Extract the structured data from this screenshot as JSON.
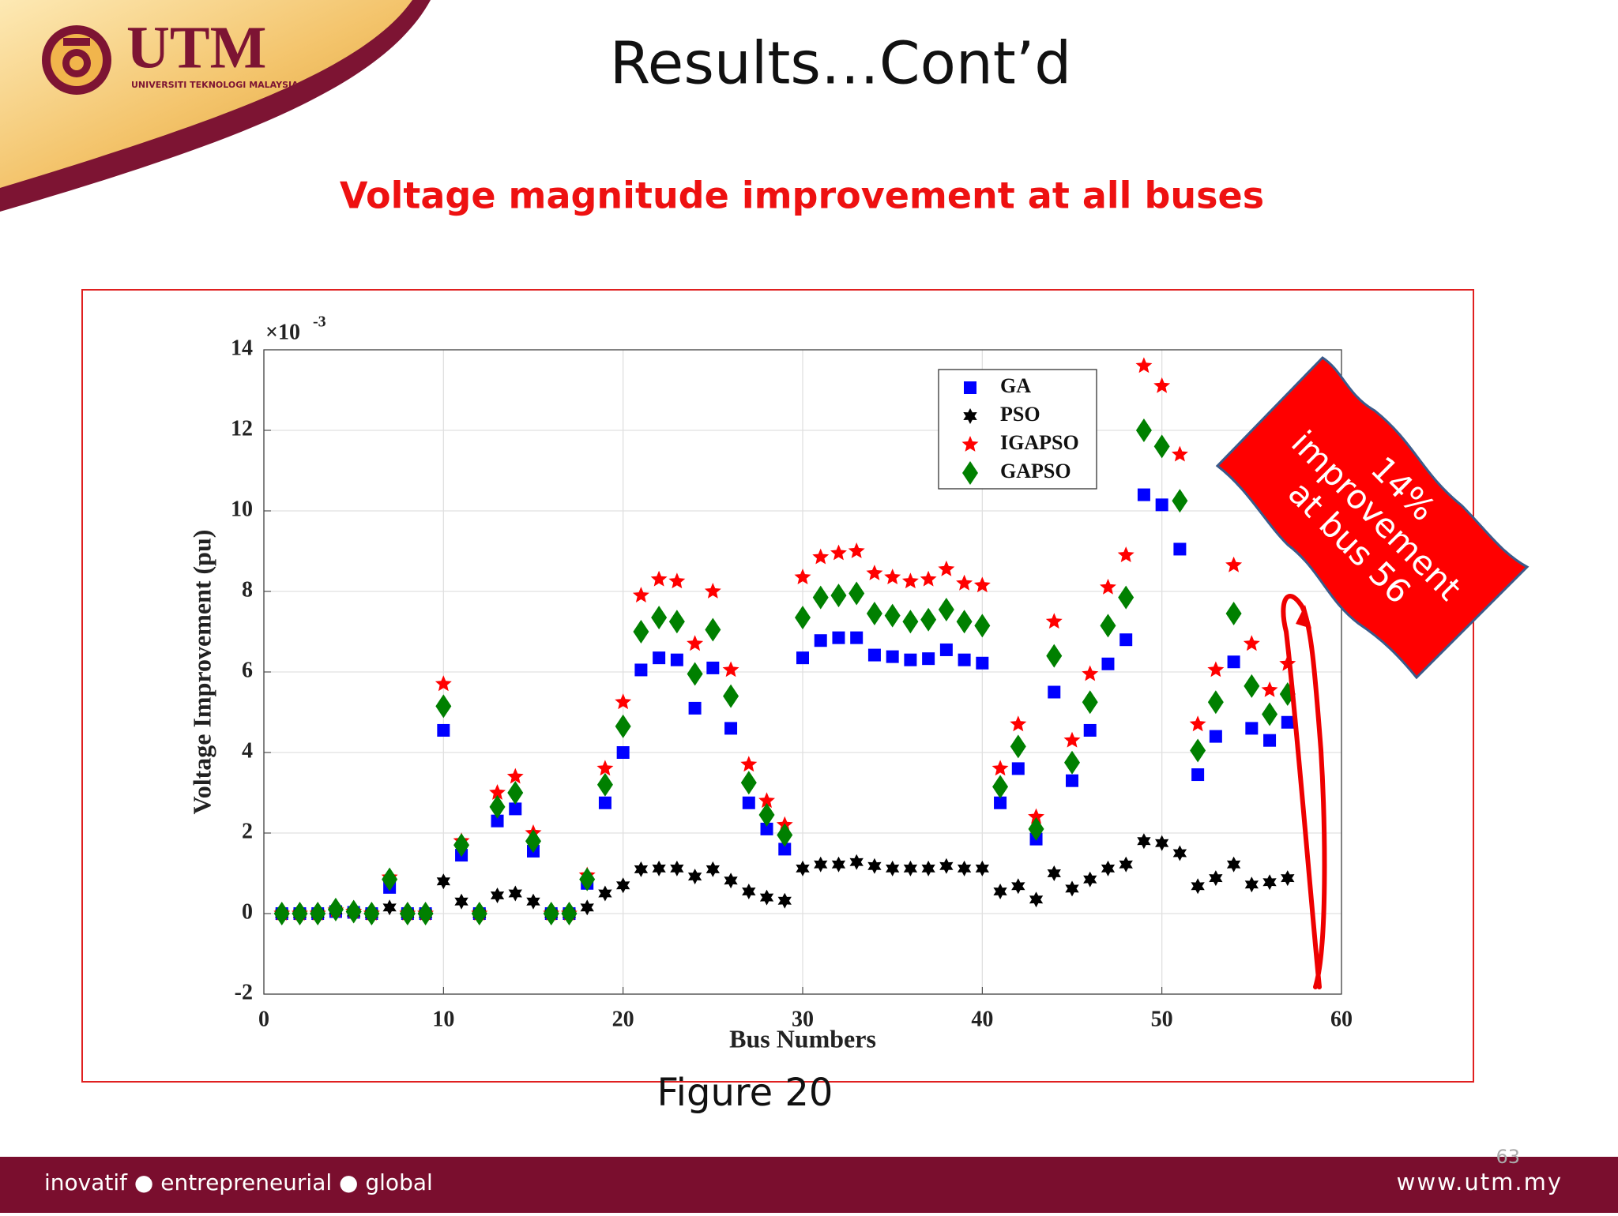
{
  "header": {
    "logo_title": "UTM",
    "logo_subtitle": "UNIVERSITI TEKNOLOGI MALAYSIA",
    "title": "Results…Cont’d"
  },
  "chart_data": {
    "type": "scatter",
    "title": "Voltage magnitude improvement at all buses",
    "x_label": "Bus Numbers",
    "y_label": "Voltage Improvement (pu)",
    "y_multiplier": {
      "base": "×10",
      "exponent": "-3"
    },
    "x": [
      1,
      2,
      3,
      4,
      5,
      6,
      7,
      8,
      9,
      10,
      11,
      12,
      13,
      14,
      15,
      16,
      17,
      18,
      19,
      20,
      21,
      22,
      23,
      24,
      25,
      26,
      27,
      28,
      29,
      30,
      31,
      32,
      33,
      34,
      35,
      36,
      37,
      38,
      39,
      40,
      41,
      42,
      43,
      44,
      45,
      46,
      47,
      48,
      49,
      50,
      51,
      52,
      53,
      54,
      55,
      56,
      57
    ],
    "series": [
      {
        "name": "GA",
        "color": "#0000ff",
        "marker": "square",
        "values": [
          0,
          0,
          0,
          0.05,
          0.03,
          0,
          0.65,
          0,
          0,
          4.55,
          1.45,
          0,
          2.3,
          2.6,
          1.55,
          0,
          0,
          0.75,
          2.75,
          4.0,
          6.05,
          6.35,
          6.3,
          5.1,
          6.1,
          4.6,
          2.75,
          2.1,
          1.6,
          6.35,
          6.78,
          6.85,
          6.85,
          6.42,
          6.38,
          6.3,
          6.33,
          6.55,
          6.3,
          6.22,
          2.75,
          3.6,
          1.85,
          5.5,
          3.3,
          4.55,
          6.2,
          6.8,
          10.4,
          10.15,
          9.05,
          3.45,
          4.4,
          6.25,
          4.6,
          4.3,
          4.75
        ]
      },
      {
        "name": "PSO",
        "color": "#000000",
        "marker": "hexagram",
        "values": [
          0,
          0,
          0,
          0.08,
          0.03,
          0,
          0.15,
          0,
          0,
          0.8,
          0.3,
          0,
          0.45,
          0.5,
          0.3,
          0,
          0,
          0.15,
          0.5,
          0.7,
          1.1,
          1.12,
          1.12,
          0.92,
          1.1,
          0.82,
          0.55,
          0.4,
          0.32,
          1.12,
          1.22,
          1.22,
          1.28,
          1.18,
          1.12,
          1.12,
          1.12,
          1.18,
          1.12,
          1.12,
          0.55,
          0.68,
          0.35,
          1.0,
          0.62,
          0.85,
          1.12,
          1.22,
          1.8,
          1.75,
          1.5,
          0.68,
          0.88,
          1.22,
          0.72,
          0.78,
          0.88
        ]
      },
      {
        "name": "IGAPSO",
        "color": "#ff0000",
        "marker": "star",
        "values": [
          0,
          0,
          0,
          0.08,
          0.05,
          0,
          0.9,
          0,
          0,
          5.7,
          1.8,
          0,
          3.0,
          3.4,
          2.0,
          0,
          0,
          0.95,
          3.6,
          5.25,
          7.9,
          8.3,
          8.25,
          6.7,
          8.0,
          6.05,
          3.7,
          2.8,
          2.2,
          8.35,
          8.85,
          8.95,
          9.0,
          8.45,
          8.35,
          8.25,
          8.3,
          8.55,
          8.2,
          8.15,
          3.6,
          4.7,
          2.4,
          7.25,
          4.3,
          5.95,
          8.1,
          8.9,
          13.6,
          13.1,
          11.4,
          4.7,
          6.05,
          8.65,
          6.7,
          5.55,
          6.2
        ]
      },
      {
        "name": "GAPSO",
        "color": "#008000",
        "marker": "diamond",
        "values": [
          0,
          0,
          0,
          0.1,
          0.05,
          0,
          0.85,
          0,
          0,
          5.15,
          1.7,
          0,
          2.65,
          3.0,
          1.8,
          0,
          0,
          0.85,
          3.2,
          4.65,
          7.0,
          7.35,
          7.25,
          5.95,
          7.05,
          5.4,
          3.25,
          2.45,
          1.95,
          7.35,
          7.85,
          7.9,
          7.95,
          7.45,
          7.4,
          7.25,
          7.3,
          7.55,
          7.25,
          7.15,
          3.15,
          4.15,
          2.1,
          6.4,
          3.75,
          5.25,
          7.15,
          7.85,
          12.0,
          11.6,
          10.25,
          4.05,
          5.25,
          7.45,
          5.65,
          4.95,
          5.45
        ]
      }
    ],
    "xlim": [
      0,
      60
    ],
    "xticks": [
      0,
      10,
      20,
      30,
      40,
      50,
      60
    ],
    "ylim": [
      -2,
      14
    ],
    "yticks": [
      -2,
      0,
      2,
      4,
      6,
      8,
      10,
      12,
      14
    ],
    "grid": true,
    "legend": "upper right",
    "annotation": [
      "14%",
      "improvement",
      "at bus 56"
    ],
    "caption": "Figure 20"
  },
  "footer": {
    "tagline": "inovatif ● entrepreneurial ● global",
    "url": "www.utm.my",
    "page": "63"
  }
}
